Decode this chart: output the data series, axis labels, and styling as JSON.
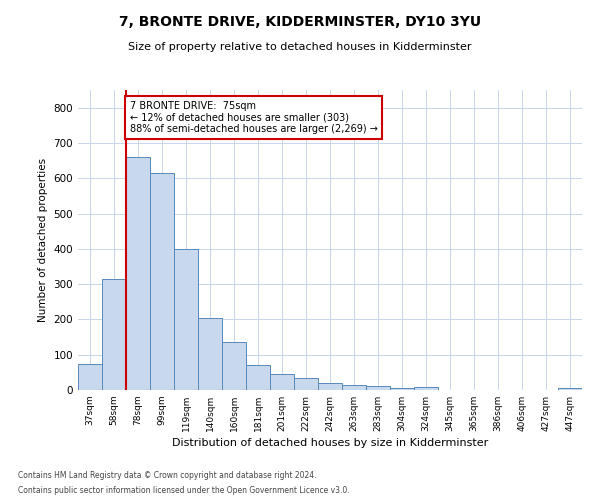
{
  "title": "7, BRONTE DRIVE, KIDDERMINSTER, DY10 3YU",
  "subtitle": "Size of property relative to detached houses in Kidderminster",
  "xlabel": "Distribution of detached houses by size in Kidderminster",
  "ylabel": "Number of detached properties",
  "categories": [
    "37sqm",
    "58sqm",
    "78sqm",
    "99sqm",
    "119sqm",
    "140sqm",
    "160sqm",
    "181sqm",
    "201sqm",
    "222sqm",
    "242sqm",
    "263sqm",
    "283sqm",
    "304sqm",
    "324sqm",
    "345sqm",
    "365sqm",
    "386sqm",
    "406sqm",
    "427sqm",
    "447sqm"
  ],
  "values": [
    75,
    315,
    660,
    615,
    400,
    205,
    135,
    70,
    45,
    35,
    20,
    15,
    10,
    5,
    8,
    0,
    0,
    0,
    0,
    0,
    5
  ],
  "bar_color": "#c9d9ed",
  "bar_edge_color": "#5588bb",
  "ylim": [
    0,
    850
  ],
  "yticks": [
    0,
    100,
    200,
    300,
    400,
    500,
    600,
    700,
    800
  ],
  "annotation_title": "7 BRONTE DRIVE:  75sqm",
  "annotation_line1": "← 12% of detached houses are smaller (303)",
  "annotation_line2": "88% of semi-detached houses are larger (2,269) →",
  "red_line_x": 1.5,
  "footer_line1": "Contains HM Land Registry data © Crown copyright and database right 2024.",
  "footer_line2": "Contains public sector information licensed under the Open Government Licence v3.0.",
  "bg_color": "#ffffff",
  "grid_color": "#c8d4e8",
  "annotation_box_color": "#ffffff",
  "annotation_box_edge_color": "#cc0000",
  "red_line_color": "#cc0000"
}
